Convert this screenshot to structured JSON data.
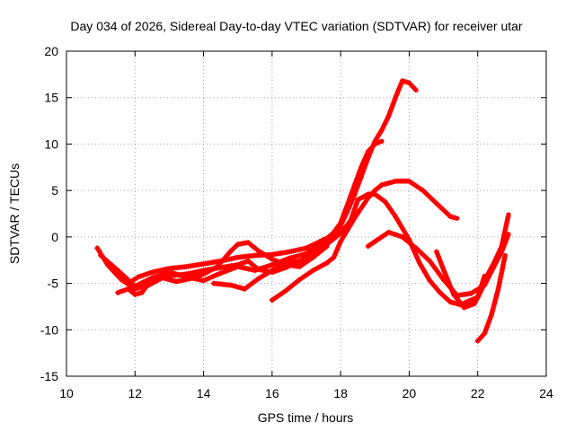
{
  "chart_data": {
    "type": "line",
    "title": "Day 034 of 2026, Sidereal Day-to-day VTEC variation (SDTVAR) for receiver utar",
    "xlabel": "GPS time / hours",
    "ylabel": "SDTVAR / TECUs",
    "xlim": [
      10,
      24
    ],
    "ylim": [
      -15,
      20
    ],
    "xticks": [
      10,
      12,
      14,
      16,
      18,
      20,
      22,
      24
    ],
    "yticks": [
      -15,
      -10,
      -5,
      0,
      5,
      10,
      15,
      20
    ],
    "xtick_labels": [
      "10",
      "12",
      "14",
      "16",
      "18",
      "20",
      "22",
      "24"
    ],
    "ytick_labels": [
      "-15",
      "-10",
      "-5",
      "0",
      "5",
      "10",
      "15",
      "20"
    ],
    "grid": true,
    "series_color": "#ff0000",
    "series": [
      {
        "name": "track-1",
        "x": [
          10.9,
          11.2,
          11.5,
          11.8,
          12.1,
          12.5,
          13.0,
          13.5,
          14.0,
          14.5,
          15.0,
          15.5,
          16.0,
          16.5,
          17.0,
          17.5,
          17.8,
          18.0,
          18.2,
          18.4,
          18.6,
          18.8,
          19.0,
          19.2,
          19.4,
          19.6,
          19.8,
          20.0,
          20.2
        ],
        "y": [
          -1.2,
          -3.0,
          -4.2,
          -5.0,
          -4.3,
          -3.8,
          -3.4,
          -3.2,
          -2.9,
          -2.6,
          -2.2,
          -2.0,
          -1.9,
          -1.6,
          -1.2,
          -0.3,
          0.2,
          1.2,
          2.8,
          4.5,
          6.5,
          8.5,
          10.3,
          11.5,
          13.0,
          15.0,
          16.8,
          16.6,
          15.8
        ]
      },
      {
        "name": "track-2",
        "x": [
          11.0,
          11.5,
          12.0,
          12.5,
          13.0,
          13.5,
          14.0,
          14.5,
          15.0,
          15.5,
          16.0,
          16.5,
          17.0,
          17.5,
          17.8,
          18.0,
          18.2,
          18.4,
          18.6,
          18.8,
          19.0,
          19.2
        ],
        "y": [
          -2.0,
          -3.6,
          -5.3,
          -4.4,
          -3.8,
          -4.3,
          -4.7,
          -3.9,
          -3.2,
          -3.6,
          -3.0,
          -2.3,
          -1.8,
          -0.5,
          0.5,
          1.5,
          3.5,
          5.5,
          7.5,
          9.2,
          10.0,
          10.3
        ]
      },
      {
        "name": "track-3",
        "x": [
          11.2,
          11.6,
          12.0,
          12.4,
          12.8,
          13.2,
          13.6,
          14.0,
          14.4,
          14.8,
          15.0,
          15.3,
          15.6,
          16.0,
          16.4,
          16.8,
          17.2,
          17.6
        ],
        "y": [
          -3.0,
          -4.6,
          -5.6,
          -5.2,
          -4.4,
          -4.8,
          -4.5,
          -4.0,
          -3.2,
          -1.5,
          -0.8,
          -0.6,
          -1.5,
          -2.4,
          -3.0,
          -3.2,
          -2.2,
          -1.0
        ]
      },
      {
        "name": "track-4",
        "x": [
          11.5,
          11.8,
          12.0,
          12.2,
          12.5,
          13.0,
          13.5,
          14.0,
          14.5,
          15.0,
          15.3,
          15.6,
          16.0,
          16.4,
          16.8,
          17.0,
          17.3,
          17.6
        ],
        "y": [
          -6.0,
          -5.6,
          -6.2,
          -6.0,
          -4.5,
          -4.2,
          -4.0,
          -3.6,
          -3.3,
          -3.0,
          -2.6,
          -3.5,
          -3.8,
          -3.3,
          -2.6,
          -2.2,
          -1.6,
          -0.6
        ]
      },
      {
        "name": "track-5",
        "x": [
          14.3,
          14.8,
          15.2,
          15.6,
          16.0,
          16.4,
          16.8,
          17.2,
          17.6,
          18.0,
          18.3,
          18.5,
          18.8,
          19.0,
          19.3,
          19.6,
          20.0,
          20.3,
          20.6,
          20.9,
          21.2,
          21.5,
          21.8,
          22.0,
          22.2
        ],
        "y": [
          -5.0,
          -5.2,
          -5.6,
          -4.5,
          -3.6,
          -2.8,
          -2.6,
          -2.1,
          -0.8,
          0.4,
          1.8,
          4.0,
          4.6,
          4.6,
          3.8,
          2.2,
          -0.3,
          -2.8,
          -4.7,
          -6.0,
          -7.0,
          -7.3,
          -6.8,
          -6.5,
          -4.2
        ]
      },
      {
        "name": "track-6",
        "x": [
          16.0,
          16.4,
          16.8,
          17.2,
          17.6,
          17.8,
          18.0,
          18.4,
          18.8,
          19.0,
          19.2,
          19.6,
          20.0,
          20.4,
          20.8,
          21.2,
          21.4
        ],
        "y": [
          -6.8,
          -5.8,
          -4.6,
          -3.6,
          -2.8,
          -2.2,
          -0.5,
          2.0,
          4.2,
          5.0,
          5.6,
          6.0,
          6.0,
          5.0,
          3.6,
          2.2,
          2.0
        ]
      },
      {
        "name": "track-7",
        "x": [
          18.8,
          19.0,
          19.4,
          19.8,
          20.2,
          20.6,
          21.0,
          21.4,
          21.8,
          22.2,
          22.5,
          22.7,
          22.9
        ],
        "y": [
          -1.0,
          -0.5,
          0.5,
          0.0,
          -1.2,
          -2.6,
          -4.6,
          -6.3,
          -6.1,
          -5.2,
          -3.0,
          -1.6,
          0.3
        ]
      },
      {
        "name": "track-8",
        "x": [
          20.8,
          21.0,
          21.3,
          21.6,
          21.9,
          22.1,
          22.3,
          22.5,
          22.7,
          22.9
        ],
        "y": [
          -1.6,
          -3.5,
          -6.2,
          -7.6,
          -7.2,
          -5.8,
          -4.0,
          -2.6,
          -1.0,
          2.4
        ]
      },
      {
        "name": "track-9",
        "x": [
          22.0,
          22.2,
          22.4,
          22.6,
          22.8
        ],
        "y": [
          -11.2,
          -10.4,
          -8.4,
          -5.6,
          -2.0
        ]
      }
    ]
  }
}
